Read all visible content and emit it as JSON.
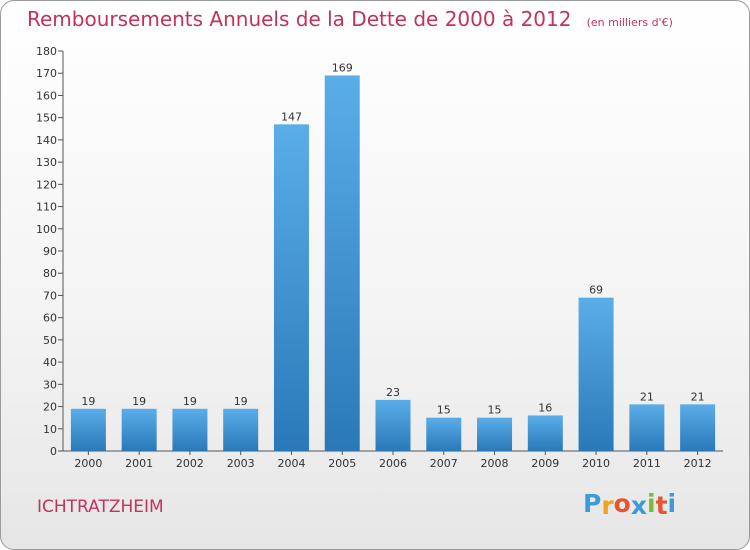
{
  "header": {
    "title": "Remboursements Annuels de la Dette de 2000 à 2012",
    "subtitle": "(en milliers d'€)"
  },
  "footer": {
    "city": "ICHTRATZHEIM",
    "logo_letters": [
      "P",
      "r",
      "o",
      "x",
      "i",
      "t",
      "i"
    ],
    "logo_colors": [
      "#3a9bd8",
      "#f3a21c",
      "#e8542c",
      "#3a9bd8",
      "#7cb83c",
      "#e8542c",
      "#3a9bd8"
    ]
  },
  "chart_data": {
    "type": "bar",
    "title": "Remboursements Annuels de la Dette de 2000 à 2012",
    "subtitle": "(en milliers d'€)",
    "categories": [
      "2000",
      "2001",
      "2002",
      "2003",
      "2004",
      "2005",
      "2006",
      "2007",
      "2008",
      "2009",
      "2010",
      "2011",
      "2012"
    ],
    "values": [
      19,
      19,
      19,
      19,
      147,
      169,
      23,
      15,
      15,
      16,
      69,
      21,
      21
    ],
    "ylim": [
      0,
      180
    ],
    "yticks": [
      0,
      10,
      20,
      30,
      40,
      50,
      60,
      70,
      80,
      90,
      100,
      110,
      120,
      130,
      140,
      150,
      160,
      170,
      180
    ],
    "grid": false,
    "bar_color_top": "#5aaee8",
    "bar_color_bottom": "#2a78b8"
  }
}
